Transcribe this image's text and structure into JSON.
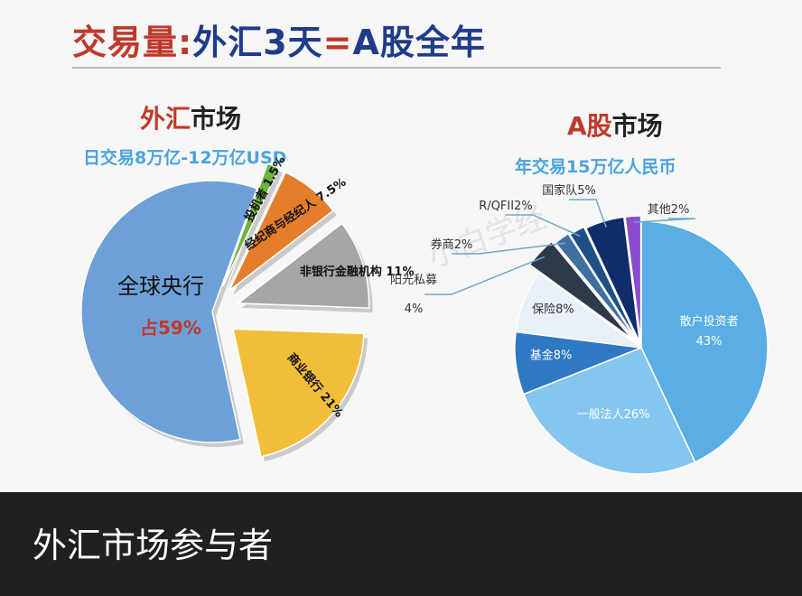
{
  "title": {
    "part1": "交易量",
    "colon": ":",
    "part2": "外汇3天",
    "eq": "=",
    "part3": "A股全年"
  },
  "fx": {
    "title_red": "外汇",
    "title_black": "市场",
    "subtitle": "日交易8万亿-12万亿USD"
  },
  "cn": {
    "title_red": "A股",
    "title_black": "市场",
    "subtitle": "年交易15万亿人民币"
  },
  "caption": "外汇市场参与者",
  "watermark": "小白学经",
  "chart_data": [
    {
      "type": "pie",
      "title": "外汇市场",
      "subtitle": "日交易8万亿-12万亿USD",
      "slices": [
        {
          "label": "全球央行",
          "value_label": "占59%",
          "value": 59,
          "color": "#6ea0d8"
        },
        {
          "label": "投机者",
          "value_label": "1.5%",
          "value": 1.5,
          "color": "#6db33f"
        },
        {
          "label": "经纪商与经纪人",
          "value_label": "7.5%",
          "value": 7.5,
          "color": "#e57e2a"
        },
        {
          "label": "非银行金融机构",
          "value_label": "11%",
          "value": 11,
          "color": "#a6a6a6"
        },
        {
          "label": "商业银行",
          "value_label": "21%",
          "value": 21,
          "color": "#f2be3a"
        }
      ]
    },
    {
      "type": "pie",
      "title": "A股市场",
      "subtitle": "年交易15万亿人民币",
      "slices": [
        {
          "label": "散户投资者",
          "value_label": "43%",
          "value": 43,
          "color": "#5aaee3"
        },
        {
          "label": "一般法人",
          "value_label": "26%",
          "value": 26,
          "color": "#84c6ef"
        },
        {
          "label": "基金",
          "value_label": "8%",
          "value": 8,
          "color": "#2f78c4"
        },
        {
          "label": "保险",
          "value_label": "8%",
          "value": 8,
          "color": "#e8f0f8"
        },
        {
          "label": "阳光私募",
          "value_label": "4%",
          "value": 4,
          "color": "#2e3a4a"
        },
        {
          "label": "券商",
          "value_label": "2%",
          "value": 2,
          "color": "#3f6f9f"
        },
        {
          "label": "R/QFII",
          "value_label": "2%",
          "value": 2,
          "color": "#1e4f86"
        },
        {
          "label": "国家队",
          "value_label": "5%",
          "value": 5,
          "color": "#0f2d6b"
        },
        {
          "label": "其他",
          "value_label": "2%",
          "value": 2,
          "color": "#8b4bd1"
        }
      ]
    }
  ]
}
